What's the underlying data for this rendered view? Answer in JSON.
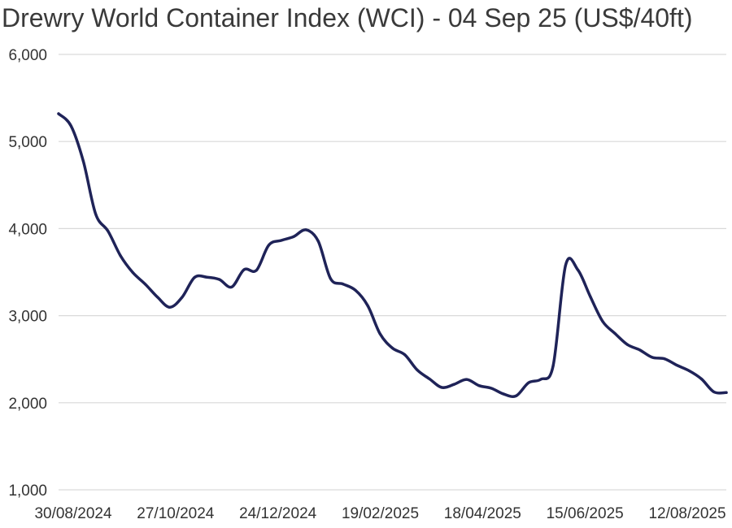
{
  "chart_data": {
    "type": "line",
    "title": "Drewry World Container Index (WCI) - 04 Sep 25 (US$/40ft)",
    "xlabel": "",
    "ylabel": "",
    "ylim": [
      1000,
      6000
    ],
    "y_ticks": [
      1000,
      2000,
      3000,
      4000,
      5000,
      6000
    ],
    "y_tick_labels": [
      "1,000",
      "2,000",
      "3,000",
      "4,000",
      "5,000",
      "6,000"
    ],
    "x_tick_labels": [
      "30/08/2024",
      "27/10/2024",
      "24/12/2024",
      "19/02/2025",
      "18/04/2025",
      "15/06/2025",
      "12/08/2025"
    ],
    "grid": "horizontal",
    "line_color": "#1f2358",
    "grid_color": "#d9d9d9",
    "series": [
      {
        "values": [
          5319,
          5181,
          4775,
          4168,
          3971,
          3690,
          3496,
          3363,
          3213,
          3097,
          3213,
          3439,
          3442,
          3416,
          3329,
          3529,
          3521,
          3810,
          3864,
          3907,
          3986,
          3855,
          3424,
          3363,
          3293,
          3116,
          2791,
          2628,
          2551,
          2377,
          2273,
          2175,
          2212,
          2268,
          2197,
          2166,
          2100,
          2078,
          2229,
          2269,
          2425,
          3578,
          3524,
          3219,
          2934,
          2795,
          2668,
          2606,
          2521,
          2505,
          2431,
          2367,
          2272,
          2124,
          2117
        ]
      }
    ]
  }
}
